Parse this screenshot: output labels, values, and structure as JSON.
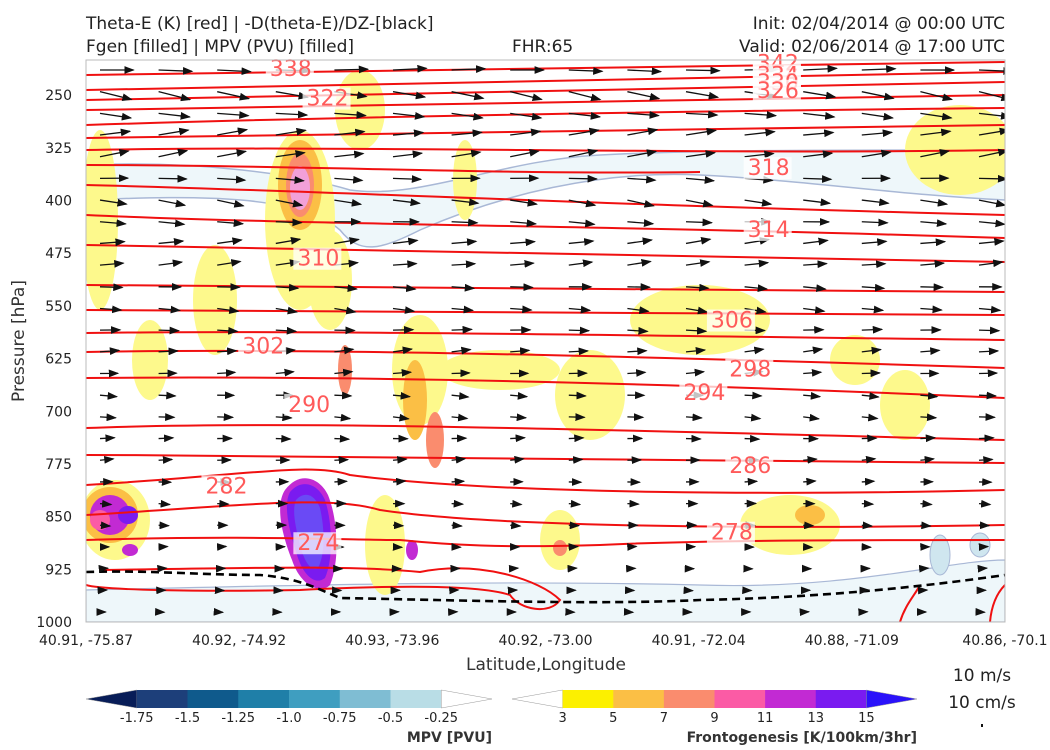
{
  "header": {
    "title_line1": "Theta-E (K) [red] | -D(theta-E)/DZ-[black]",
    "title_line2": "Fgen [filled] | MPV (PVU) [filled]",
    "fhr": "FHR:65",
    "init": "Init: 02/04/2014 @ 00:00 UTC",
    "valid": "Valid: 02/06/2014 @ 17:00 UTC"
  },
  "chart_data": {
    "type": "cross-section",
    "xlabel": "Latitude,Longitude",
    "ylabel": "Pressure [hPa]",
    "ylim": [
      1000,
      200
    ],
    "x_ticks": [
      "40.91, -75.87",
      "40.92, -74.92",
      "40.93, -73.96",
      "40.92, -73.00",
      "40.91, -72.04",
      "40.88, -71.09",
      "40.86, -70.1"
    ],
    "y_ticks": [
      250,
      325,
      400,
      475,
      550,
      625,
      700,
      775,
      850,
      925,
      1000
    ],
    "theta_e_labels": [
      {
        "value": "342",
        "x": 0.73,
        "p": 212
      },
      {
        "value": "334",
        "x": 0.73,
        "p": 229
      },
      {
        "value": "330",
        "x": 0.73,
        "p": 240
      },
      {
        "value": "326",
        "x": 0.73,
        "p": 251
      },
      {
        "value": "338",
        "x": 0.2,
        "p": 220
      },
      {
        "value": "322",
        "x": 0.24,
        "p": 262
      },
      {
        "value": "318",
        "x": 0.72,
        "p": 361
      },
      {
        "value": "314",
        "x": 0.72,
        "p": 449
      },
      {
        "value": "310",
        "x": 0.23,
        "p": 490
      },
      {
        "value": "306",
        "x": 0.68,
        "p": 578
      },
      {
        "value": "302",
        "x": 0.17,
        "p": 615
      },
      {
        "value": "298",
        "x": 0.7,
        "p": 648
      },
      {
        "value": "294",
        "x": 0.65,
        "p": 681
      },
      {
        "value": "290",
        "x": 0.22,
        "p": 698
      },
      {
        "value": "286",
        "x": 0.7,
        "p": 785
      },
      {
        "value": "282",
        "x": 0.13,
        "p": 814
      },
      {
        "value": "278",
        "x": 0.68,
        "p": 880
      },
      {
        "value": "274",
        "x": 0.23,
        "p": 895
      }
    ],
    "mpv_colorbar": {
      "label": "MPV [PVU]",
      "ticks": [
        "-1.75",
        "-1.5",
        "-1.25",
        "-1.0",
        "-0.75",
        "-0.5",
        "-0.25"
      ],
      "colors": [
        "#081d58",
        "#1d3f7a",
        "#0f5a8c",
        "#1f7fa8",
        "#3f9ec0",
        "#7fbdd3",
        "#b9dde6",
        "#ffffff"
      ]
    },
    "fgen_colorbar": {
      "label": "Frontogenesis [K/100km/3hr]",
      "ticks": [
        "3",
        "5",
        "7",
        "9",
        "11",
        "13",
        "15"
      ],
      "colors": [
        "#ffffff",
        "#fcf000",
        "#fbbf45",
        "#fa8c6e",
        "#fb5ba5",
        "#c22ad3",
        "#7a1bf0",
        "#2a12fa"
      ]
    },
    "wind_reference": {
      "horizontal": "10 m/s",
      "vertical": "10 cm/s"
    }
  }
}
